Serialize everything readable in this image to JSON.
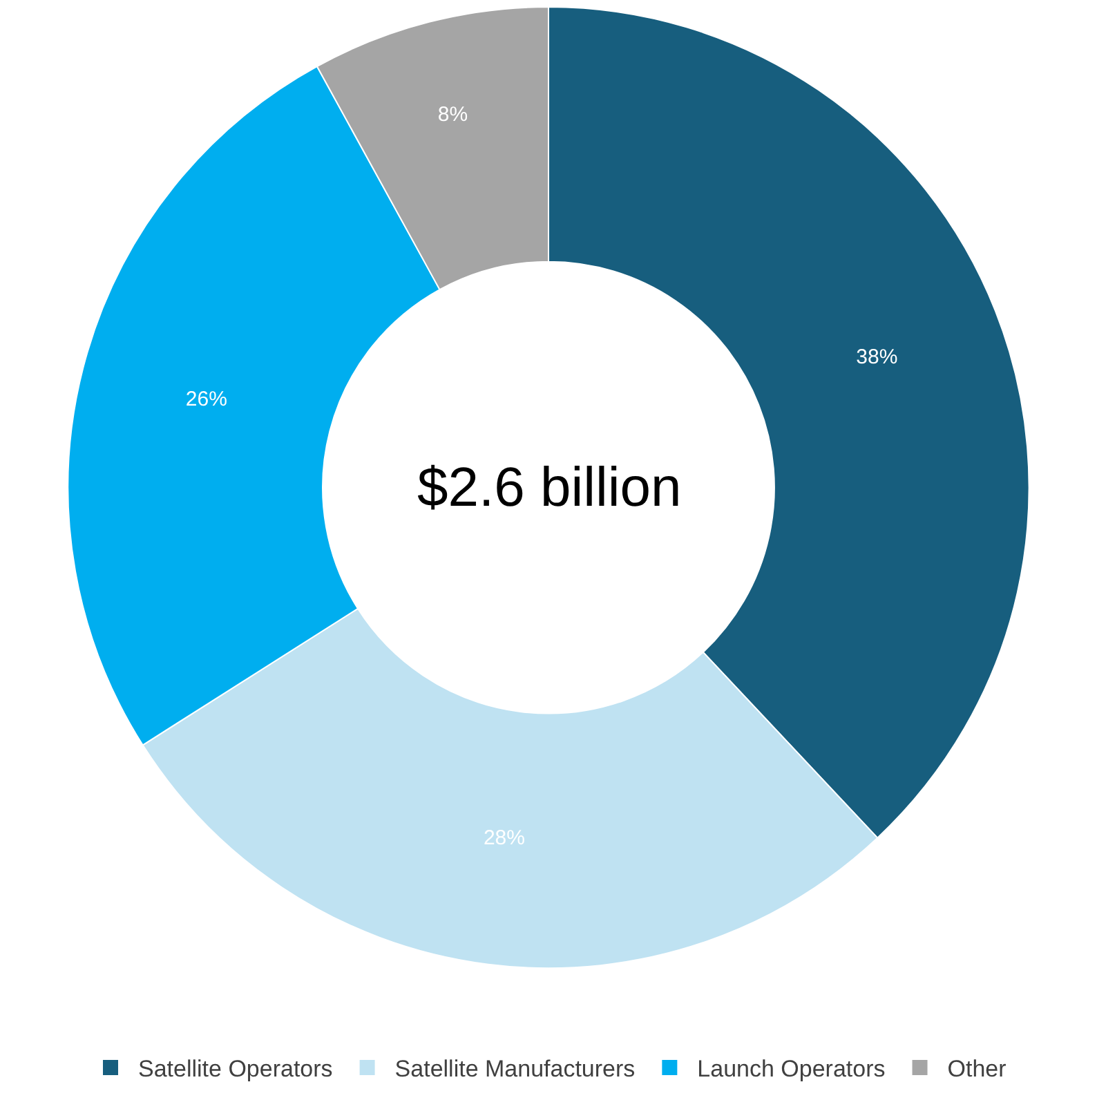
{
  "chart_data": {
    "type": "donut",
    "categories": [
      "Satellite Operators",
      "Satellite Manufacturers",
      "Launch Operators",
      "Other"
    ],
    "values": [
      38,
      28,
      26,
      8
    ],
    "colors": [
      "#175e7e",
      "#bfe2f2",
      "#00aeef",
      "#a5a5a5"
    ],
    "value_labels": [
      "38%",
      "28%",
      "26%",
      "8%"
    ],
    "annotations": [
      "$2.6 billion"
    ],
    "legend": "bottom"
  }
}
